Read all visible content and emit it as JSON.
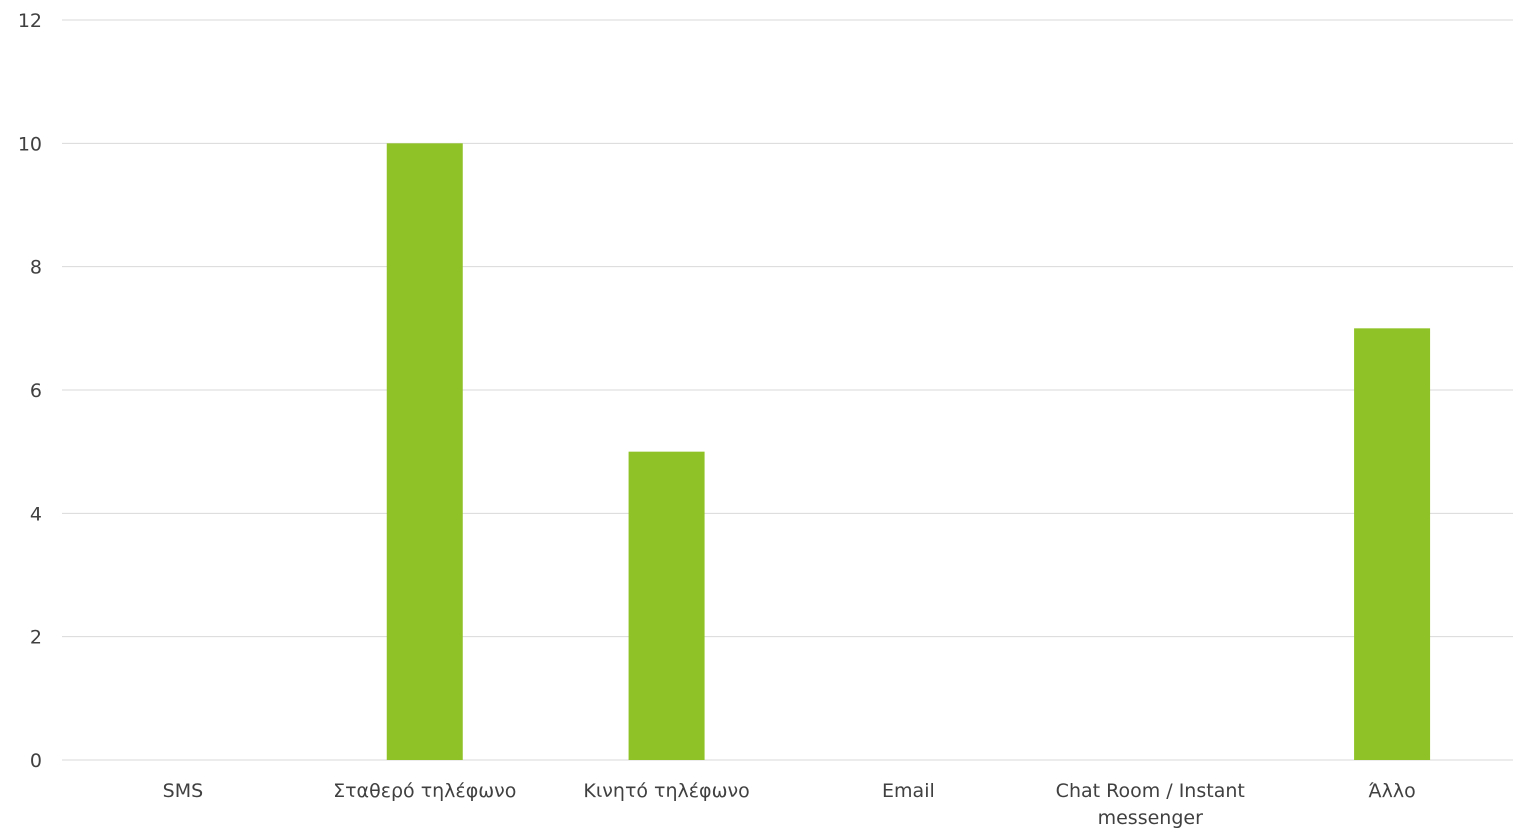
{
  "chart_data": {
    "type": "bar",
    "categories": [
      "SMS",
      "Σταθερό τηλέφωνο",
      "Κινητό τηλέφωνο",
      "Email",
      "Chat Room / Instant messenger",
      "Άλλο"
    ],
    "category_label_lines": [
      [
        "SMS"
      ],
      [
        "Σταθερό τηλέφωνο"
      ],
      [
        "Κινητό τηλέφωνο"
      ],
      [
        "Email"
      ],
      [
        "Chat Room / Instant",
        "messenger"
      ],
      [
        "Άλλο"
      ]
    ],
    "values": [
      0,
      10,
      5,
      0,
      0,
      7
    ],
    "ylim": [
      0,
      12
    ],
    "yticks": [
      "0",
      "2",
      "4",
      "6",
      "8",
      "10",
      "12"
    ],
    "grid": true,
    "legend": "none",
    "bar_color": "#8fc226",
    "grid_color": "#d9d9d9",
    "text_color": "#404040"
  }
}
